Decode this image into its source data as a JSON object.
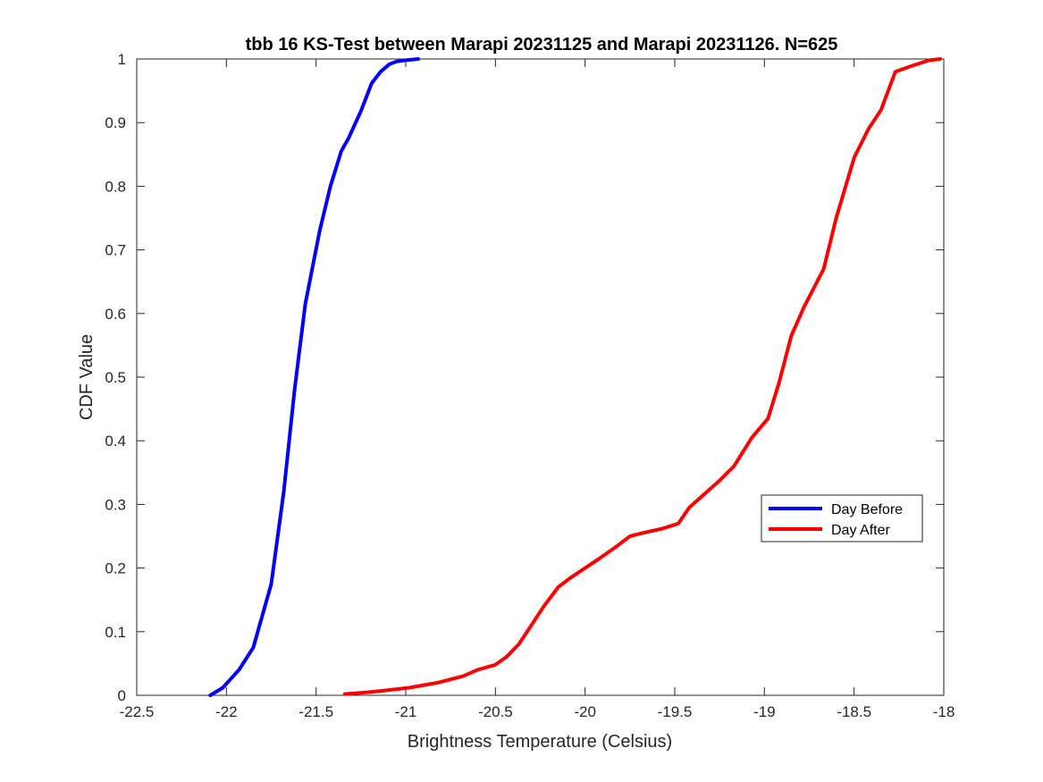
{
  "chart_data": {
    "type": "line",
    "title": "tbb 16 KS-Test between Marapi 20231125 and Marapi 20231126. N=625",
    "xlabel": "Brightness Temperature (Celsius)",
    "ylabel": "CDF Value",
    "xlim": [
      -22.5,
      -18
    ],
    "ylim": [
      0,
      1
    ],
    "xticks": [
      "-22.5",
      "-22",
      "-21.5",
      "-21",
      "-20.5",
      "-20",
      "-19.5",
      "-19",
      "-18.5",
      "-18"
    ],
    "yticks": [
      "0",
      "0.1",
      "0.2",
      "0.3",
      "0.4",
      "0.5",
      "0.6",
      "0.7",
      "0.8",
      "0.9",
      "1"
    ],
    "grid": false,
    "legend_position": "right",
    "series": [
      {
        "name": "Day Before",
        "color": "#0000ff",
        "x": [
          -22.09,
          -22.02,
          -21.93,
          -21.85,
          -21.75,
          -21.68,
          -21.62,
          -21.56,
          -21.48,
          -21.42,
          -21.36,
          -21.32,
          -21.25,
          -21.19,
          -21.14,
          -21.09,
          -21.05,
          -21.0,
          -20.93
        ],
        "y": [
          0.0,
          0.012,
          0.04,
          0.075,
          0.175,
          0.32,
          0.48,
          0.615,
          0.73,
          0.8,
          0.855,
          0.875,
          0.918,
          0.962,
          0.98,
          0.992,
          0.996,
          0.998,
          1.0
        ]
      },
      {
        "name": "Day After",
        "color": "#ff0000",
        "x": [
          -21.34,
          -21.2,
          -21.1,
          -20.98,
          -20.82,
          -20.68,
          -20.6,
          -20.5,
          -20.44,
          -20.37,
          -20.3,
          -20.23,
          -20.15,
          -20.08,
          -20.0,
          -19.92,
          -19.82,
          -19.75,
          -19.68,
          -19.57,
          -19.48,
          -19.42,
          -19.34,
          -19.26,
          -19.17,
          -19.07,
          -18.98,
          -18.92,
          -18.85,
          -18.78,
          -18.67,
          -18.6,
          -18.5,
          -18.42,
          -18.35,
          -18.27,
          -18.17,
          -18.08,
          -18.02
        ],
        "y": [
          0.002,
          0.005,
          0.008,
          0.012,
          0.02,
          0.03,
          0.04,
          0.048,
          0.06,
          0.08,
          0.11,
          0.14,
          0.17,
          0.185,
          0.2,
          0.215,
          0.235,
          0.25,
          0.255,
          0.262,
          0.27,
          0.295,
          0.315,
          0.335,
          0.36,
          0.405,
          0.435,
          0.49,
          0.565,
          0.61,
          0.67,
          0.75,
          0.845,
          0.89,
          0.92,
          0.98,
          0.99,
          0.998,
          1.0
        ]
      }
    ]
  }
}
